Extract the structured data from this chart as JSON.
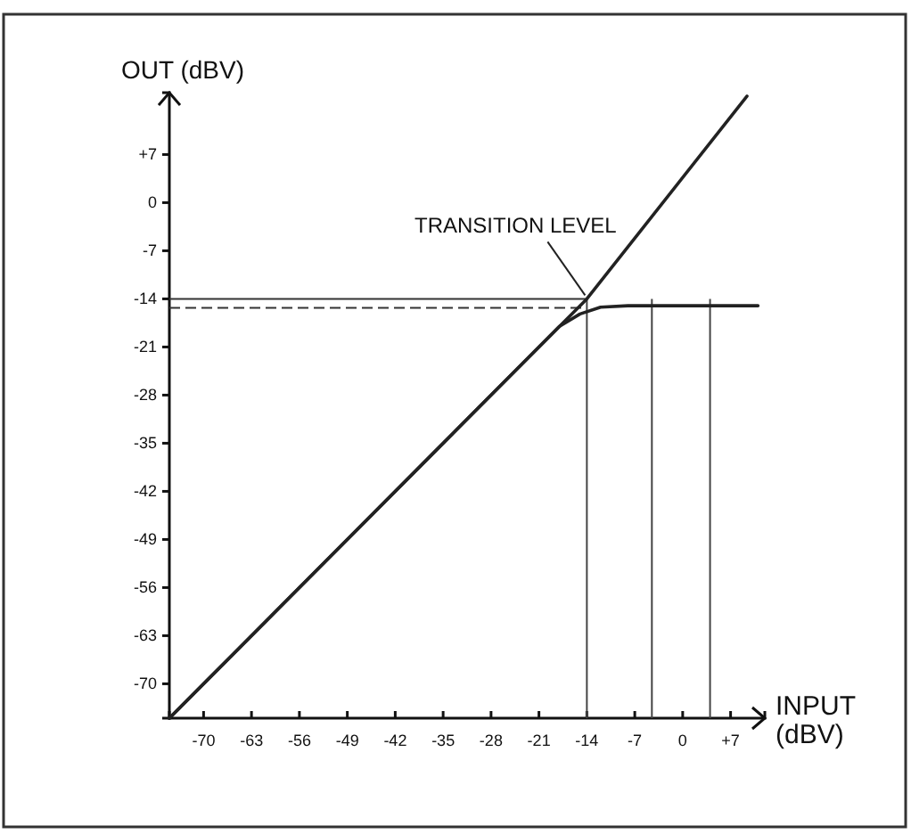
{
  "chart_data": {
    "type": "line",
    "xlabel": "INPUT (dBV)",
    "ylabel": "OUT (dBV)",
    "xlim": [
      -75,
      12
    ],
    "ylim": [
      -75,
      16
    ],
    "xticks": [
      -70,
      -63,
      -56,
      -49,
      -42,
      -35,
      -28,
      -21,
      -14,
      -7,
      0,
      {
        "value": 7,
        "label": "+7"
      }
    ],
    "yticks": [
      -70,
      -63,
      -56,
      -49,
      -42,
      -35,
      -28,
      -21,
      -14,
      -7,
      0,
      {
        "value": 7,
        "label": "+7"
      }
    ],
    "series": [
      {
        "color": "#222222",
        "x": [
          -75,
          -14,
          9.4
        ],
        "values": [
          -75,
          -14,
          15.5
        ]
      },
      {
        "color": "#222222",
        "x": [
          -75,
          -18,
          -15,
          -12,
          -8,
          11
        ],
        "values": [
          -75,
          -18,
          -16.2,
          -15.2,
          -15,
          -15
        ]
      }
    ],
    "ref_lines": [
      {
        "axis": "y",
        "value": -14,
        "color": "#333333",
        "line_style": "solid"
      },
      {
        "axis": "y",
        "value": -15.3,
        "color": "#333333",
        "line_style": "dashed"
      },
      {
        "axis": "x",
        "value": -14,
        "color": "#444444",
        "line_style": "solid"
      },
      {
        "axis": "x",
        "value": -4.5,
        "color": "#444444",
        "line_style": "solid"
      },
      {
        "axis": "x",
        "value": 4,
        "color": "#444444",
        "line_style": "solid"
      }
    ],
    "annotations": [
      {
        "text": "TRANSITION LEVEL",
        "x": -14,
        "y": -14
      }
    ]
  }
}
